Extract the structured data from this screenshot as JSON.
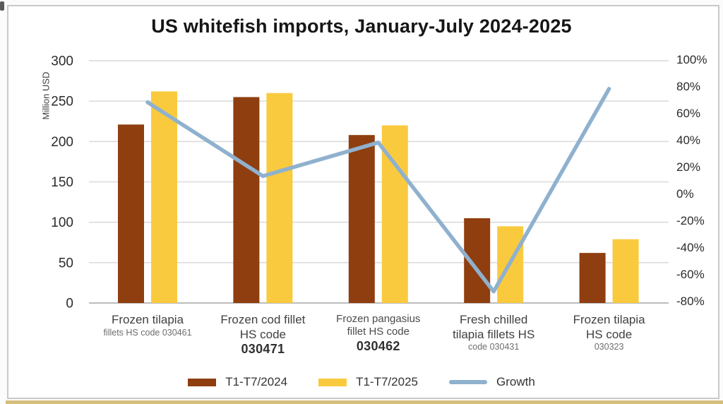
{
  "chart_data": {
    "type": "combo",
    "title": "US whitefish imports, January-July 2024-2025",
    "left_axis": {
      "label": "Million USD",
      "ticks": [
        300,
        250,
        200,
        150,
        100,
        50,
        0
      ],
      "range": [
        0,
        300
      ]
    },
    "right_axis": {
      "ticks_pct": [
        100,
        80,
        60,
        40,
        20,
        0,
        -20,
        -40,
        -60,
        -80
      ],
      "unit": "%",
      "range": [
        -80,
        100
      ]
    },
    "grid": "horizontal",
    "legend_position": "bottom",
    "categories": [
      {
        "name": "Frozen tilapia fillets HS code 030461",
        "lines": [
          {
            "text": "Frozen tilapia",
            "size": "lg"
          },
          {
            "text": "fillets HS code 030461",
            "size": "sm"
          }
        ]
      },
      {
        "name": "Frozen cod fillet HS code 030471",
        "lines": [
          {
            "text": "Frozen cod fillet",
            "size": "lg"
          },
          {
            "text": "HS code",
            "size": "lg"
          },
          {
            "text": "030471",
            "size": "lgb"
          }
        ]
      },
      {
        "name": "Frozen pangasius fillet HS code 030462",
        "lines": [
          {
            "text": "Frozen pangasius",
            "size": "md"
          },
          {
            "text": "fillet HS code",
            "size": "md"
          },
          {
            "text": "030462",
            "size": "lgb"
          }
        ]
      },
      {
        "name": "Fresh chilled tilapia fillets HS code 030431",
        "lines": [
          {
            "text": "Fresh chilled",
            "size": "lg"
          },
          {
            "text": "tilapia fillets HS",
            "size": "lg"
          },
          {
            "text": "code 030431",
            "size": "sm"
          }
        ]
      },
      {
        "name": "Frozen tilapia HS code 030323",
        "lines": [
          {
            "text": "Frozen tilapia",
            "size": "lg"
          },
          {
            "text": "HS code",
            "size": "lg"
          },
          {
            "text": "030323",
            "size": "sm"
          }
        ]
      }
    ],
    "series": [
      {
        "name": "T1-T7/2024",
        "type": "bar",
        "color": "#8F3E10",
        "axis": "left",
        "values": [
          221,
          255,
          208,
          105,
          62
        ]
      },
      {
        "name": "T1-T7/2025",
        "type": "bar",
        "color": "#FACA3E",
        "axis": "left",
        "values": [
          262,
          260,
          220,
          95,
          79
        ]
      },
      {
        "name": "Growth",
        "type": "line",
        "color": "#8FB1CE",
        "axis": "right",
        "values_pct": [
          68,
          13,
          38,
          -73,
          78
        ]
      }
    ],
    "colors": {
      "bar_2024": "#8F3E10",
      "bar_2025": "#FACA3E",
      "growth_line": "#8FB1CE",
      "gridline": "#d9d9d9",
      "baseline": "#bdbdbd",
      "axis_text": "#2b2b2b"
    }
  }
}
